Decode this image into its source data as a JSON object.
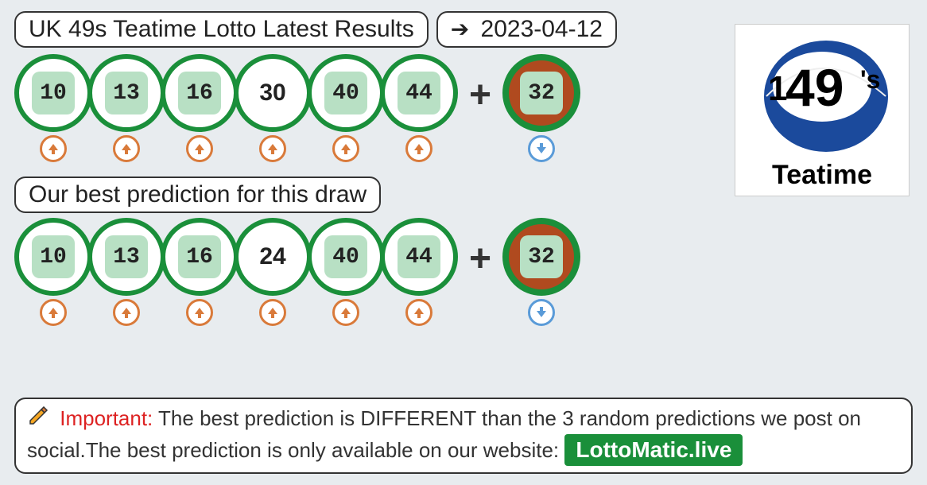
{
  "header": {
    "title": "UK 49s Teatime Lotto Latest Results",
    "date": "2023-04-12"
  },
  "colors": {
    "background": "#e8ecef",
    "ball_border": "#1a8f3a",
    "ball_bg": "#ffffff",
    "hit_bg": "#b8e0c4",
    "booster_bg": "#b04a1f",
    "trend_up": "#d97a3a",
    "trend_down": "#5a9bd8",
    "important": "#d22222",
    "badge_bg": "#1a8f3a"
  },
  "ball_style": {
    "diameter": 98,
    "border_width": 6,
    "inner_size": 54,
    "inner_radius": 10,
    "font_size": 28
  },
  "results": {
    "main": [
      {
        "n": "10",
        "hit": true,
        "trend": "up"
      },
      {
        "n": "13",
        "hit": true,
        "trend": "up"
      },
      {
        "n": "16",
        "hit": true,
        "trend": "up"
      },
      {
        "n": "30",
        "hit": false,
        "trend": "up"
      },
      {
        "n": "40",
        "hit": true,
        "trend": "up"
      },
      {
        "n": "44",
        "hit": true,
        "trend": "up"
      }
    ],
    "booster": {
      "n": "32",
      "trend": "down"
    }
  },
  "prediction": {
    "label": "Our best prediction for this draw",
    "main": [
      {
        "n": "10",
        "hit": true,
        "trend": "up"
      },
      {
        "n": "13",
        "hit": true,
        "trend": "up"
      },
      {
        "n": "16",
        "hit": true,
        "trend": "up"
      },
      {
        "n": "24",
        "hit": false,
        "trend": "up"
      },
      {
        "n": "40",
        "hit": true,
        "trend": "up"
      },
      {
        "n": "44",
        "hit": true,
        "trend": "up"
      }
    ],
    "booster": {
      "n": "32",
      "trend": "down"
    }
  },
  "logo": {
    "text_main": "49",
    "text_suffix": "'s",
    "subtitle": "Teatime",
    "ball_color": "#1b4a9c",
    "ball_highlight": "#3a6fc7"
  },
  "notice": {
    "important_label": "Important:",
    "text_1": " The best prediction is DIFFERENT than the 3 random predictions we post on social.The best prediction is only available on our website: ",
    "site": "LottoMatic.live"
  }
}
